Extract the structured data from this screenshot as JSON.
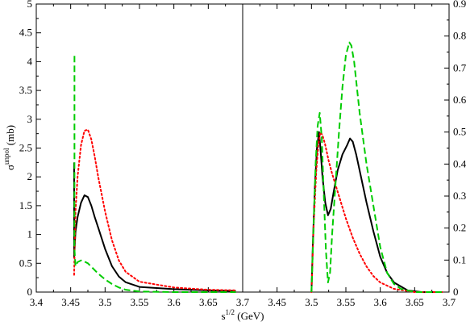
{
  "chart_data": [
    {
      "type": "line",
      "panel": "left",
      "xlim": [
        3.4,
        3.7
      ],
      "ylim": [
        0,
        5
      ],
      "x_ticks": [
        "3.4",
        "3.45",
        "3.5",
        "3.55",
        "3.6",
        "3.65",
        "3.7"
      ],
      "y_ticks": [
        "0",
        "0.5",
        "1",
        "1.5",
        "2",
        "2.5",
        "3",
        "3.5",
        "4",
        "4.5",
        "5"
      ],
      "ylabel": {
        "base": "σ",
        "sup": "unpol",
        "unit": " (mb)"
      },
      "xlabel": {
        "base": "s",
        "sup": "1/2",
        "unit": " (GeV)"
      },
      "grid": false,
      "series": [
        {
          "style": "solid",
          "color": "#000000",
          "x": [
            3.455,
            3.455,
            3.457,
            3.46,
            3.465,
            3.47,
            3.475,
            3.48,
            3.485,
            3.49,
            3.5,
            3.51,
            3.52,
            3.53,
            3.55,
            3.6,
            3.65,
            3.69
          ],
          "y": [
            2.25,
            0.6,
            1.05,
            1.3,
            1.55,
            1.68,
            1.65,
            1.5,
            1.3,
            1.12,
            0.75,
            0.45,
            0.27,
            0.17,
            0.09,
            0.05,
            0.03,
            0.02
          ]
        },
        {
          "style": "dotted",
          "color": "#ff0000",
          "x": [
            3.455,
            3.457,
            3.46,
            3.465,
            3.47,
            3.475,
            3.48,
            3.485,
            3.49,
            3.5,
            3.51,
            3.52,
            3.53,
            3.55,
            3.6,
            3.65,
            3.69
          ],
          "y": [
            0.3,
            1.4,
            2.0,
            2.55,
            2.8,
            2.82,
            2.65,
            2.35,
            2.0,
            1.4,
            0.9,
            0.55,
            0.35,
            0.18,
            0.08,
            0.04,
            0.03
          ]
        },
        {
          "style": "dashed",
          "color": "#00cc00",
          "x": [
            3.4555,
            3.4555,
            3.457,
            3.46,
            3.465,
            3.47,
            3.475,
            3.48,
            3.49,
            3.5,
            3.51,
            3.52,
            3.53,
            3.55,
            3.6,
            3.65,
            3.69
          ],
          "y": [
            4.1,
            0.75,
            0.45,
            0.52,
            0.55,
            0.53,
            0.5,
            0.44,
            0.32,
            0.22,
            0.14,
            0.08,
            0.04,
            0.01,
            0.0,
            0.0,
            0.0
          ]
        }
      ]
    },
    {
      "type": "line",
      "panel": "right",
      "xlim": [
        3.4,
        3.7
      ],
      "ylim": [
        0,
        0.9
      ],
      "x_ticks": [
        "3.45",
        "3.5",
        "3.55",
        "3.6",
        "3.65",
        "3.7"
      ],
      "y_ticks": [
        "0",
        "0.1",
        "0.2",
        "0.3",
        "0.4",
        "0.5",
        "0.6",
        "0.7",
        "0.8",
        "0.9"
      ],
      "grid": false,
      "series": [
        {
          "style": "solid",
          "color": "#000000",
          "x": [
            3.5,
            3.502,
            3.505,
            3.508,
            3.511,
            3.513,
            3.516,
            3.52,
            3.524,
            3.528,
            3.532,
            3.538,
            3.545,
            3.552,
            3.556,
            3.56,
            3.565,
            3.57,
            3.58,
            3.59,
            3.6,
            3.61,
            3.62,
            3.64,
            3.66,
            3.69
          ],
          "y": [
            0.0,
            0.15,
            0.33,
            0.45,
            0.5,
            0.45,
            0.36,
            0.28,
            0.24,
            0.26,
            0.31,
            0.38,
            0.43,
            0.46,
            0.48,
            0.47,
            0.43,
            0.38,
            0.28,
            0.19,
            0.11,
            0.06,
            0.03,
            0.005,
            0.0,
            0.0
          ]
        },
        {
          "style": "dotted",
          "color": "#ff0000",
          "x": [
            3.5,
            3.503,
            3.507,
            3.51,
            3.513,
            3.516,
            3.52,
            3.525,
            3.53,
            3.54,
            3.55,
            3.56,
            3.57,
            3.58,
            3.59,
            3.6,
            3.62,
            3.65,
            3.69
          ],
          "y": [
            0.0,
            0.2,
            0.38,
            0.46,
            0.5,
            0.49,
            0.46,
            0.41,
            0.37,
            0.3,
            0.23,
            0.17,
            0.12,
            0.08,
            0.05,
            0.03,
            0.01,
            0.0,
            0.0
          ]
        },
        {
          "style": "dashed",
          "color": "#00cc00",
          "x": [
            3.5,
            3.503,
            3.506,
            3.509,
            3.512,
            3.515,
            3.518,
            3.521,
            3.524,
            3.527,
            3.53,
            3.535,
            3.54,
            3.545,
            3.55,
            3.555,
            3.558,
            3.562,
            3.566,
            3.57,
            3.58,
            3.59,
            3.6,
            3.61,
            3.62,
            3.63,
            3.65,
            3.69
          ],
          "y": [
            0.0,
            0.2,
            0.4,
            0.52,
            0.56,
            0.48,
            0.3,
            0.13,
            0.03,
            0.06,
            0.18,
            0.34,
            0.5,
            0.64,
            0.74,
            0.78,
            0.77,
            0.72,
            0.64,
            0.56,
            0.4,
            0.27,
            0.14,
            0.06,
            0.025,
            0.01,
            0.0,
            0.0
          ]
        }
      ]
    }
  ]
}
